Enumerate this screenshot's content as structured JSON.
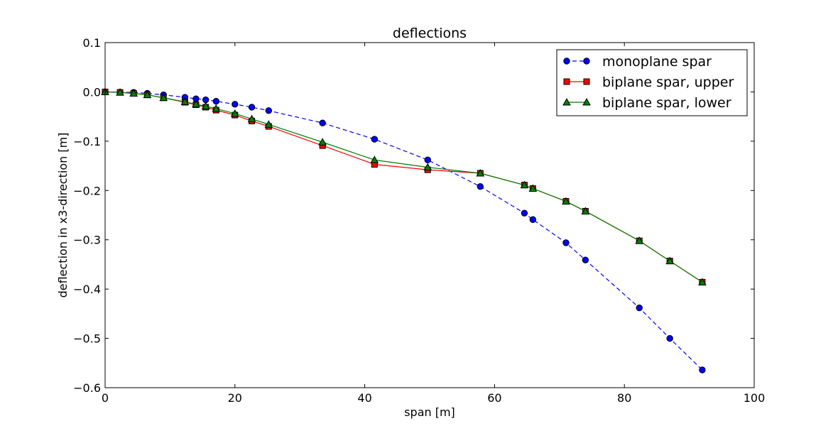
{
  "chart_data": {
    "type": "line",
    "title": "deflections",
    "xlabel": "span [m]",
    "ylabel": "deflection in x3-direction [m]",
    "xlim": [
      0,
      100
    ],
    "ylim": [
      -0.6,
      0.1
    ],
    "xticks": [
      0,
      20,
      40,
      60,
      80,
      100
    ],
    "xtick_labels": [
      "0",
      "20",
      "40",
      "60",
      "80",
      "100"
    ],
    "yticks": [
      0.1,
      0.0,
      -0.1,
      -0.2,
      -0.3,
      -0.4,
      -0.5,
      -0.6
    ],
    "ytick_labels": [
      "0.1",
      "0.0",
      "−0.1",
      "−0.2",
      "−0.3",
      "−0.4",
      "−0.5",
      "−0.6"
    ],
    "grid": false,
    "legend_position": "top-right",
    "series": [
      {
        "name": "monoplane spar",
        "color": "#0000ff",
        "line_style": "dashed",
        "marker": "circle",
        "x": [
          0,
          2.3,
          4.4,
          6.5,
          9.0,
          12.3,
          14.0,
          15.5,
          17.1,
          20.0,
          22.6,
          25.2,
          33.5,
          41.5,
          49.7,
          57.8,
          64.6,
          65.9,
          71.0,
          74.0,
          82.3,
          87.0,
          92.0
        ],
        "y": [
          0.0,
          -0.0005,
          -0.001,
          -0.003,
          -0.006,
          -0.011,
          -0.014,
          -0.016,
          -0.019,
          -0.025,
          -0.031,
          -0.038,
          -0.063,
          -0.096,
          -0.138,
          -0.192,
          -0.246,
          -0.259,
          -0.306,
          -0.341,
          -0.438,
          -0.5,
          -0.564
        ]
      },
      {
        "name": "biplane spar, upper",
        "color": "#ff0000",
        "line_style": "solid",
        "marker": "square",
        "x": [
          0,
          2.3,
          4.4,
          6.5,
          9.0,
          12.3,
          14.0,
          15.5,
          17.1,
          20.0,
          22.6,
          25.2,
          33.5,
          41.5,
          49.7,
          57.8,
          64.6,
          65.9,
          71.0,
          74.0,
          82.3,
          87.0,
          92.0
        ],
        "y": [
          0.0,
          -0.001,
          -0.003,
          -0.006,
          -0.012,
          -0.021,
          -0.026,
          -0.031,
          -0.037,
          -0.047,
          -0.059,
          -0.07,
          -0.109,
          -0.147,
          -0.158,
          -0.165,
          -0.189,
          -0.196,
          -0.222,
          -0.242,
          -0.302,
          -0.343,
          -0.386
        ]
      },
      {
        "name": "biplane spar, lower",
        "color": "#008000",
        "line_style": "solid",
        "marker": "triangle",
        "x": [
          0,
          2.3,
          4.4,
          6.5,
          9.0,
          12.3,
          14.0,
          15.5,
          17.1,
          20.0,
          22.6,
          25.2,
          33.5,
          41.5,
          49.7,
          57.8,
          64.6,
          65.9,
          71.0,
          74.0,
          82.3,
          87.0,
          92.0
        ],
        "y": [
          0.0,
          -0.001,
          -0.003,
          -0.006,
          -0.012,
          -0.02,
          -0.025,
          -0.029,
          -0.034,
          -0.044,
          -0.055,
          -0.066,
          -0.102,
          -0.138,
          -0.153,
          -0.165,
          -0.189,
          -0.196,
          -0.222,
          -0.242,
          -0.302,
          -0.343,
          -0.386
        ]
      }
    ]
  }
}
